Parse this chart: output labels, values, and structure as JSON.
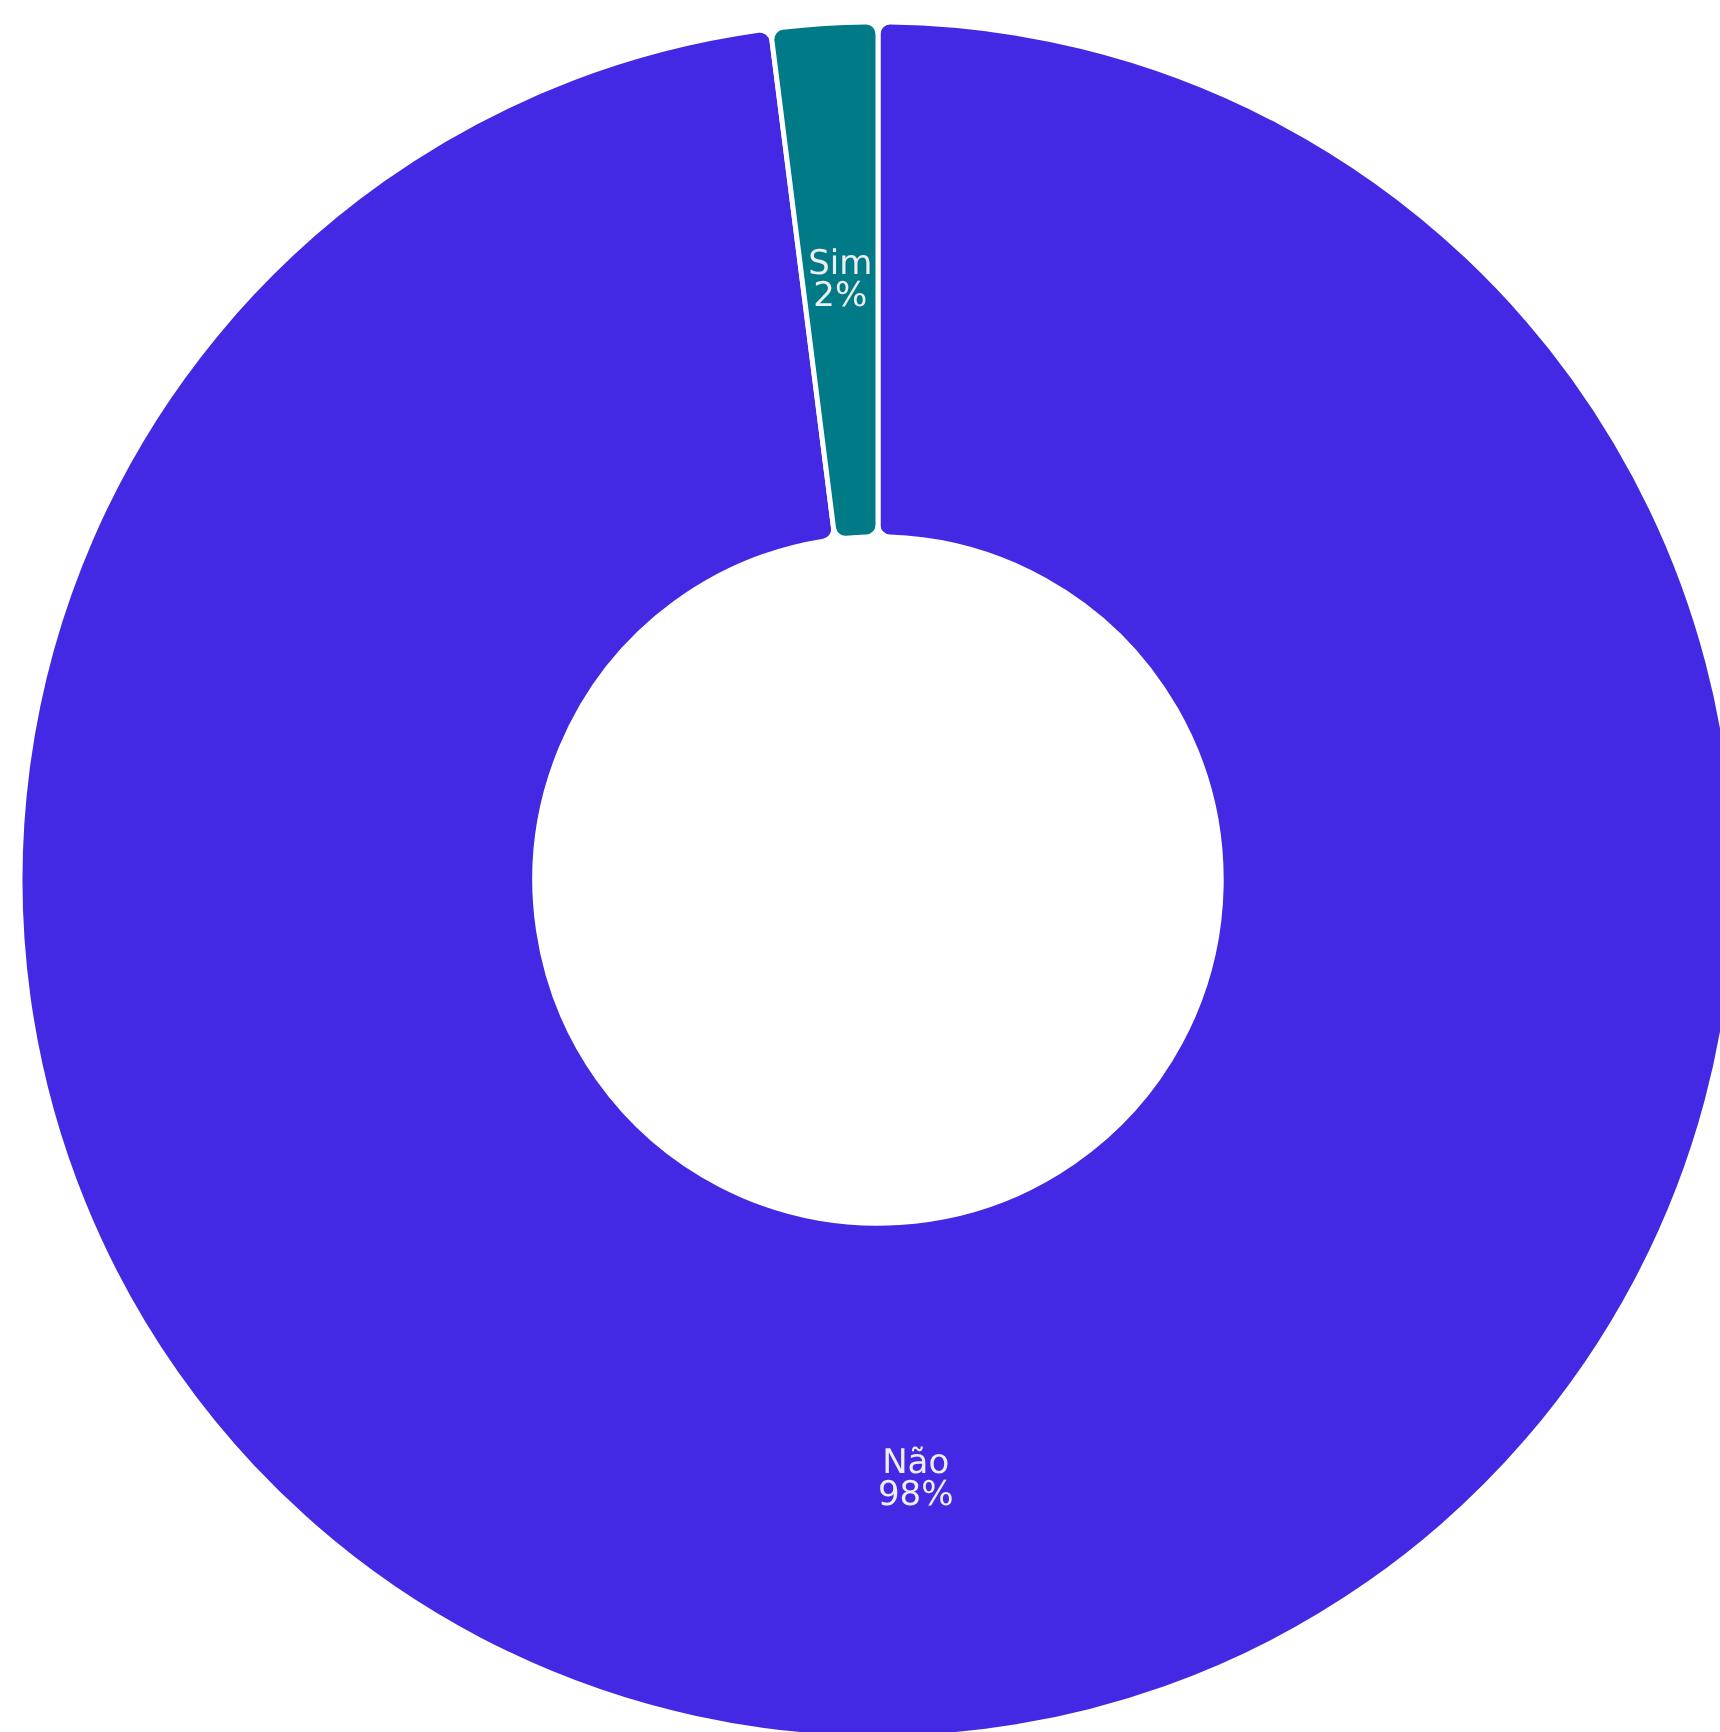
{
  "chart_data": {
    "type": "donut",
    "categories": [
      "Não",
      "Sim"
    ],
    "values": [
      98,
      2
    ],
    "colors": [
      "#4329e4",
      "#007a87"
    ],
    "value_labels": [
      "98%",
      "2%"
    ]
  }
}
